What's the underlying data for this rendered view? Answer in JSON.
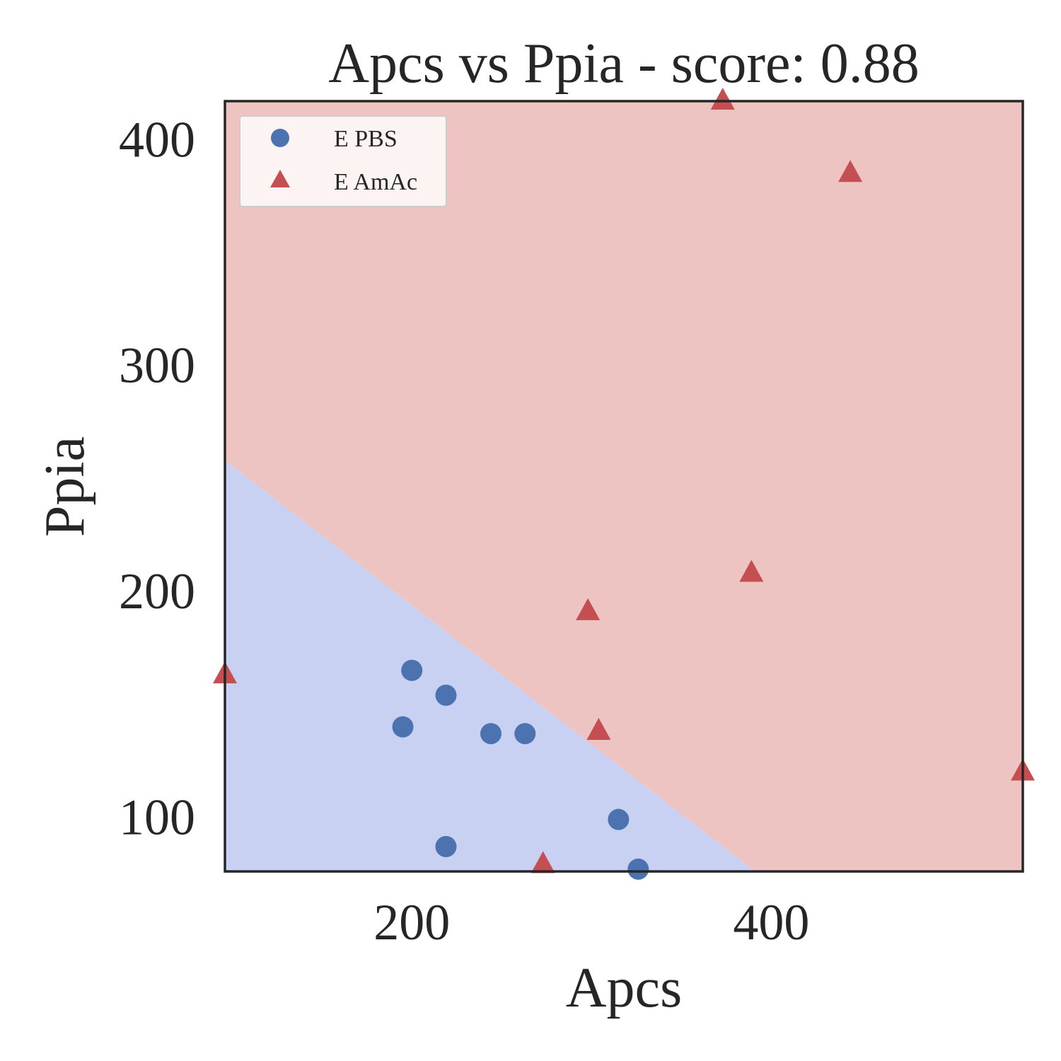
{
  "chart_data": {
    "type": "scatter",
    "title": "Apcs vs Ppia - score: 0.88",
    "xlabel": "Apcs",
    "ylabel": "Ppia",
    "xlim": [
      96,
      540
    ],
    "ylim": [
      76,
      417
    ],
    "xticks": [
      200,
      400
    ],
    "yticks": [
      100,
      200,
      300,
      400
    ],
    "grid": false,
    "legend_position": "top-left",
    "decision_boundary": {
      "line": [
        [
          96,
          258
        ],
        [
          391,
          76
        ]
      ],
      "region_below_color": "#c8d1f2",
      "region_above_color": "#eec4c3"
    },
    "series": [
      {
        "name": "E PBS",
        "marker": "circle",
        "color": "#4c72b0",
        "points": [
          [
            200,
            165
          ],
          [
            219,
            154
          ],
          [
            195,
            140
          ],
          [
            244,
            137
          ],
          [
            263,
            137
          ],
          [
            315,
            99
          ],
          [
            219,
            87
          ],
          [
            326,
            77
          ]
        ]
      },
      {
        "name": "E AmAc",
        "marker": "triangle",
        "color": "#c44e52",
        "points": [
          [
            373,
            417
          ],
          [
            444,
            385
          ],
          [
            389,
            208
          ],
          [
            298,
            191
          ],
          [
            96,
            163
          ],
          [
            304,
            138
          ],
          [
            540,
            120
          ],
          [
            273,
            79
          ]
        ]
      }
    ]
  }
}
